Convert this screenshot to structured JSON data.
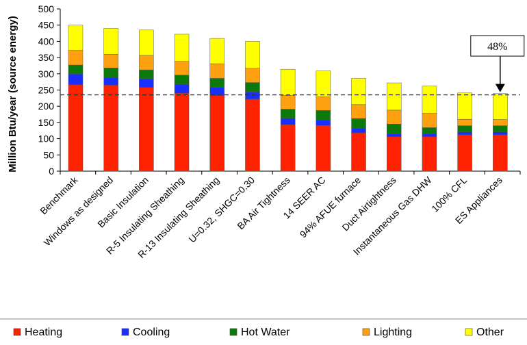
{
  "chart_data": {
    "type": "bar",
    "stacked": true,
    "ylabel": "Million Btu/year (source energy)",
    "ylim": [
      0,
      500
    ],
    "yticks": [
      "0",
      "50",
      "100",
      "150",
      "200",
      "250",
      "300",
      "350",
      "400",
      "450",
      "500"
    ],
    "categories": [
      "Benchmark",
      "Windows as designed",
      "Basic Insulation",
      "R-5 Insulating Sheathing",
      "R-13 Insulating Sheathing",
      "U=0.32, SHGC=0.30",
      "BA Air Tightness",
      "14 SEER AC",
      "94% AFUE furnace",
      "Duct Airtightness",
      "Instantaneous Gas DHW",
      "100% CFL",
      "ES Appliances"
    ],
    "series": [
      {
        "name": "Heating",
        "color": "#ff2200",
        "values": [
          266,
          265,
          258,
          240,
          233,
          222,
          143,
          141,
          118,
          106,
          106,
          112,
          112
        ]
      },
      {
        "name": "Cooling",
        "color": "#1a2fff",
        "values": [
          33,
          24,
          27,
          28,
          25,
          22,
          20,
          17,
          14,
          9,
          9,
          9,
          9
        ]
      },
      {
        "name": "Hot Water",
        "color": "#0b7a0b",
        "values": [
          28,
          29,
          27,
          28,
          28,
          29,
          28,
          29,
          30,
          30,
          19,
          19,
          19
        ]
      },
      {
        "name": "Lighting",
        "color": "#ffa010",
        "values": [
          45,
          42,
          45,
          42,
          45,
          44,
          42,
          42,
          43,
          43,
          44,
          20,
          19
        ]
      },
      {
        "name": "Other",
        "color": "#ffff00",
        "values": [
          78,
          80,
          78,
          84,
          78,
          83,
          81,
          80,
          81,
          84,
          84,
          81,
          80
        ]
      }
    ],
    "reference_line": {
      "value": 235,
      "style": "dashed"
    },
    "annotation": {
      "text": "48%",
      "target_category": "ES Appliances"
    },
    "legend_position": "bottom",
    "grid": false
  }
}
